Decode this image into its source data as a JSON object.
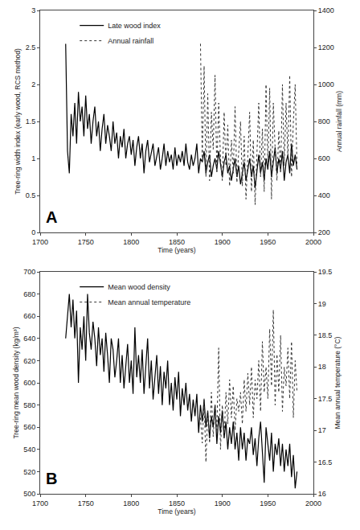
{
  "chart_data": [
    {
      "type": "line",
      "annotations": [
        "A"
      ],
      "x_label": "Time (years)",
      "y_label": "Tree-ring width index (early wood, RCS method)",
      "y2_label": "Annual rainfall (mm)",
      "xlim": [
        1700,
        2000
      ],
      "xticks": [
        1700,
        1750,
        1800,
        1850,
        1900,
        1950,
        2000
      ],
      "ylim": [
        0,
        3
      ],
      "yticks": [
        0,
        0.5,
        1,
        1.5,
        2,
        2.5,
        3
      ],
      "y2lim": [
        200,
        1400
      ],
      "y2ticks": [
        200,
        400,
        600,
        800,
        1000,
        1200,
        1400
      ],
      "legend": "upper left",
      "series": [
        {
          "name": "Late wood index",
          "color": "#000000",
          "line_style": "solid",
          "x": [
            1728,
            1730,
            1732,
            1734,
            1736,
            1738,
            1740,
            1742,
            1744,
            1746,
            1748,
            1750,
            1752,
            1754,
            1756,
            1758,
            1760,
            1762,
            1764,
            1766,
            1768,
            1770,
            1772,
            1774,
            1776,
            1778,
            1780,
            1782,
            1784,
            1786,
            1788,
            1790,
            1792,
            1794,
            1796,
            1798,
            1800,
            1802,
            1804,
            1806,
            1808,
            1810,
            1812,
            1814,
            1816,
            1818,
            1820,
            1822,
            1824,
            1826,
            1828,
            1830,
            1832,
            1834,
            1836,
            1838,
            1840,
            1842,
            1844,
            1846,
            1848,
            1850,
            1852,
            1854,
            1856,
            1858,
            1860,
            1862,
            1864,
            1866,
            1868,
            1870,
            1872,
            1874,
            1876,
            1878,
            1880,
            1882,
            1884,
            1886,
            1888,
            1890,
            1892,
            1894,
            1896,
            1898,
            1900,
            1902,
            1904,
            1906,
            1908,
            1910,
            1912,
            1914,
            1916,
            1918,
            1920,
            1922,
            1924,
            1926,
            1928,
            1930,
            1932,
            1934,
            1936,
            1938,
            1940,
            1942,
            1944,
            1946,
            1948,
            1950,
            1952,
            1954,
            1956,
            1958,
            1960,
            1962,
            1964,
            1966,
            1968,
            1970,
            1972,
            1974,
            1976,
            1978,
            1980,
            1982
          ],
          "values": [
            2.55,
            1.1,
            0.8,
            1.6,
            1.3,
            1.75,
            1.2,
            1.9,
            1.5,
            1.7,
            1.3,
            1.85,
            1.4,
            1.6,
            1.2,
            1.5,
            1.7,
            1.3,
            1.5,
            1.1,
            1.4,
            1.6,
            1.2,
            1.45,
            1.3,
            1.1,
            1.5,
            1.2,
            1.35,
            1.0,
            1.3,
            1.15,
            1.4,
            1.0,
            1.2,
            1.3,
            1.05,
            1.25,
            0.9,
            1.15,
            1.3,
            1.0,
            1.2,
            0.8,
            1.1,
            1.25,
            0.95,
            1.1,
            1.2,
            0.9,
            1.05,
            1.15,
            0.85,
            1.0,
            1.2,
            0.9,
            1.1,
            0.95,
            1.05,
            0.85,
            1.15,
            0.9,
            1.05,
            0.95,
            1.1,
            0.9,
            1.2,
            0.95,
            0.85,
            1.05,
            0.9,
            1.0,
            1.2,
            0.8,
            1.0,
            0.95,
            1.1,
            0.8,
            0.95,
            1.05,
            0.75,
            0.9,
            1.0,
            0.85,
            1.1,
            0.9,
            0.75,
            0.95,
            1.05,
            0.8,
            0.9,
            0.7,
            0.85,
            1.0,
            0.75,
            0.9,
            0.65,
            0.8,
            0.95,
            0.7,
            0.85,
            1.0,
            0.75,
            0.9,
            0.6,
            0.85,
            1.05,
            0.8,
            0.95,
            0.7,
            1.0,
            0.85,
            1.1,
            0.75,
            0.95,
            1.15,
            0.8,
            1.0,
            0.85,
            1.1,
            0.7,
            0.95,
            1.05,
            0.8,
            1.2,
            0.9,
            1.05,
            0.85
          ]
        },
        {
          "name": "Annual rainfall",
          "color": "#333333",
          "line_style": "dot",
          "axis": "y2",
          "x": [
            1876,
            1878,
            1880,
            1882,
            1884,
            1886,
            1888,
            1890,
            1892,
            1894,
            1896,
            1898,
            1900,
            1902,
            1904,
            1906,
            1908,
            1910,
            1912,
            1914,
            1916,
            1918,
            1920,
            1922,
            1924,
            1926,
            1928,
            1930,
            1932,
            1934,
            1936,
            1938,
            1940,
            1942,
            1944,
            1946,
            1948,
            1950,
            1952,
            1954,
            1956,
            1958,
            1960,
            1962,
            1964,
            1966,
            1968,
            1970,
            1972,
            1974,
            1976,
            1978,
            1980,
            1982
          ],
          "values": [
            1220,
            600,
            1100,
            500,
            950,
            480,
            850,
            650,
            1050,
            520,
            900,
            600,
            480,
            850,
            560,
            780,
            450,
            700,
            520,
            880,
            470,
            650,
            800,
            450,
            720,
            380,
            600,
            850,
            420,
            700,
            350,
            620,
            900,
            500,
            760,
            420,
            1000,
            550,
            980,
            380,
            900,
            650,
            480,
            750,
            520,
            1000,
            560,
            900,
            600,
            1050,
            500,
            800,
            1000,
            550
          ]
        }
      ]
    },
    {
      "type": "line",
      "annotations": [
        "B"
      ],
      "x_label": "Time (years)",
      "y_label": "Tree-ring mean wood density (kg/m³)",
      "y2_label": "Mean annual temperature (°C)",
      "xlim": [
        1700,
        2000
      ],
      "xticks": [
        1700,
        1750,
        1800,
        1850,
        1900,
        1950,
        2000
      ],
      "ylim": [
        500,
        700
      ],
      "yticks": [
        500,
        520,
        540,
        560,
        580,
        600,
        620,
        640,
        660,
        680,
        700
      ],
      "y2lim": [
        16,
        19.5
      ],
      "y2ticks": [
        16,
        16.5,
        17,
        17.5,
        18,
        18.5,
        19,
        19.5
      ],
      "legend": "upper left",
      "series": [
        {
          "name": "Mean wood density",
          "color": "#000000",
          "line_style": "solid",
          "x": [
            1728,
            1730,
            1732,
            1734,
            1736,
            1738,
            1740,
            1742,
            1744,
            1746,
            1748,
            1750,
            1752,
            1754,
            1756,
            1758,
            1760,
            1762,
            1764,
            1766,
            1768,
            1770,
            1772,
            1774,
            1776,
            1778,
            1780,
            1782,
            1784,
            1786,
            1788,
            1790,
            1792,
            1794,
            1796,
            1798,
            1800,
            1802,
            1804,
            1806,
            1808,
            1810,
            1812,
            1814,
            1816,
            1818,
            1820,
            1822,
            1824,
            1826,
            1828,
            1830,
            1832,
            1834,
            1836,
            1838,
            1840,
            1842,
            1844,
            1846,
            1848,
            1850,
            1852,
            1854,
            1856,
            1858,
            1860,
            1862,
            1864,
            1866,
            1868,
            1870,
            1872,
            1874,
            1876,
            1878,
            1880,
            1882,
            1884,
            1886,
            1888,
            1890,
            1892,
            1894,
            1896,
            1898,
            1900,
            1902,
            1904,
            1906,
            1908,
            1910,
            1912,
            1914,
            1916,
            1918,
            1920,
            1922,
            1924,
            1926,
            1928,
            1930,
            1932,
            1934,
            1936,
            1938,
            1940,
            1942,
            1944,
            1946,
            1948,
            1950,
            1952,
            1954,
            1956,
            1958,
            1960,
            1962,
            1964,
            1966,
            1968,
            1970,
            1972,
            1974,
            1976,
            1978,
            1980,
            1982
          ],
          "values": [
            640,
            660,
            680,
            650,
            675,
            640,
            665,
            600,
            650,
            630,
            660,
            620,
            680,
            645,
            630,
            655,
            640,
            615,
            650,
            625,
            640,
            610,
            645,
            625,
            600,
            640,
            630,
            605,
            620,
            640,
            600,
            625,
            595,
            615,
            635,
            600,
            620,
            590,
            650,
            605,
            625,
            600,
            630,
            590,
            615,
            640,
            595,
            620,
            585,
            605,
            625,
            590,
            615,
            580,
            610,
            595,
            620,
            580,
            600,
            575,
            605,
            585,
            610,
            570,
            595,
            580,
            600,
            575,
            590,
            565,
            585,
            570,
            590,
            555,
            580,
            565,
            585,
            560,
            575,
            550,
            570,
            560,
            580,
            545,
            570,
            555,
            575,
            550,
            565,
            540,
            560,
            545,
            565,
            540,
            555,
            530,
            560,
            540,
            555,
            530,
            550,
            545,
            560,
            535,
            550,
            525,
            550,
            565,
            540,
            510,
            560,
            545,
            530,
            555,
            520,
            545,
            535,
            550,
            525,
            545,
            520,
            540,
            525,
            545,
            515,
            535,
            505,
            520
          ]
        },
        {
          "name": "Mean annual temperature",
          "color": "#333333",
          "line_style": "dot",
          "axis": "y2",
          "x": [
            1876,
            1878,
            1880,
            1882,
            1884,
            1886,
            1888,
            1890,
            1892,
            1894,
            1896,
            1898,
            1900,
            1902,
            1904,
            1906,
            1908,
            1910,
            1912,
            1914,
            1916,
            1918,
            1920,
            1922,
            1924,
            1926,
            1928,
            1930,
            1932,
            1934,
            1936,
            1938,
            1940,
            1942,
            1944,
            1946,
            1948,
            1950,
            1952,
            1954,
            1956,
            1958,
            1960,
            1962,
            1964,
            1966,
            1968,
            1970,
            1972,
            1974,
            1976,
            1978,
            1980,
            1982
          ],
          "values": [
            17.2,
            16.8,
            17.5,
            16.5,
            17.3,
            16.8,
            17.6,
            16.9,
            17.4,
            17.0,
            18.3,
            16.7,
            17.4,
            16.9,
            17.6,
            17.1,
            17.8,
            17.2,
            17.7,
            17.0,
            17.5,
            17.3,
            17.6,
            17.1,
            17.8,
            17.3,
            17.9,
            17.4,
            18.0,
            17.2,
            17.8,
            17.5,
            18.1,
            17.3,
            18.4,
            17.6,
            18.0,
            17.5,
            18.6,
            17.7,
            18.9,
            17.4,
            18.2,
            17.6,
            18.5,
            17.3,
            18.0,
            17.7,
            18.3,
            17.5,
            18.4,
            17.2,
            18.1,
            17.6
          ]
        }
      ]
    }
  ]
}
